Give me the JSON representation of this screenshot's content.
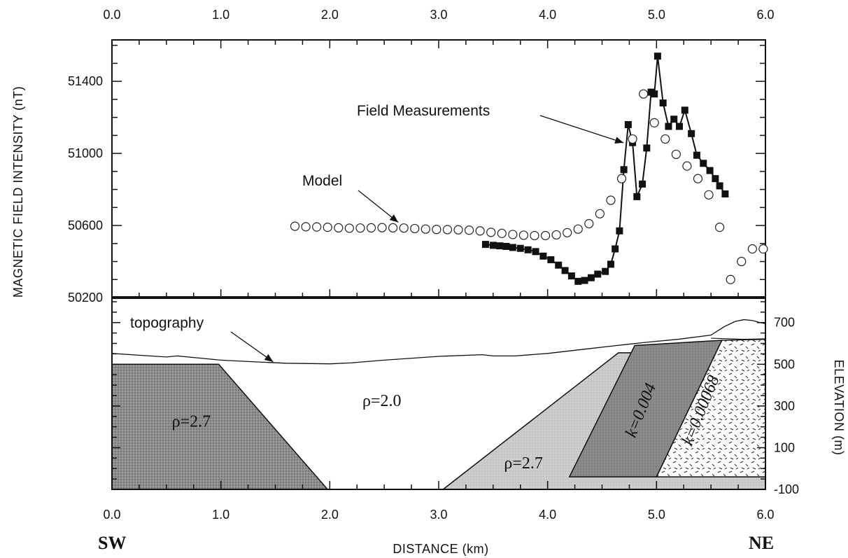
{
  "chart_data": [
    {
      "type": "scatter",
      "panel": "magnetic-profile",
      "ylabel": "MAGNETIC FIELD INTENSITY (nT)",
      "xlim": [
        0,
        6
      ],
      "ylim": [
        50200,
        51630
      ],
      "x_ticks": [
        "0.0",
        "1.0",
        "2.0",
        "3.0",
        "4.0",
        "5.0",
        "6.0"
      ],
      "y_ticks": [
        {
          "value": 50200,
          "label": "50200"
        },
        {
          "value": 50600,
          "label": "50600"
        },
        {
          "value": 51000,
          "label": "51000"
        },
        {
          "value": 51400,
          "label": "51400"
        }
      ],
      "series": [
        {
          "name": "Field Measurements",
          "style": "line-square-filled",
          "x": [
            3.43,
            3.5,
            3.56,
            3.62,
            3.68,
            3.75,
            3.82,
            3.89,
            3.96,
            4.03,
            4.1,
            4.16,
            4.22,
            4.28,
            4.34,
            4.4,
            4.46,
            4.53,
            4.58,
            4.62,
            4.66,
            4.7,
            4.74,
            4.78,
            4.82,
            4.87,
            4.91,
            4.95,
            4.98,
            5.01,
            5.06,
            5.11,
            5.16,
            5.21,
            5.26,
            5.32,
            5.37,
            5.43,
            5.49,
            5.54,
            5.58,
            5.63
          ],
          "y": [
            50495,
            50490,
            50487,
            50484,
            50478,
            50473,
            50465,
            50455,
            50430,
            50410,
            50380,
            50350,
            50320,
            50290,
            50295,
            50310,
            50330,
            50345,
            50385,
            50470,
            50570,
            50910,
            51160,
            51060,
            50760,
            50830,
            51030,
            51340,
            51330,
            51540,
            51280,
            51150,
            51190,
            51150,
            51240,
            51110,
            50990,
            50945,
            50905,
            50860,
            50820,
            50775
          ]
        },
        {
          "name": "Model",
          "style": "open-circle",
          "x": [
            1.68,
            1.78,
            1.88,
            1.98,
            2.08,
            2.18,
            2.28,
            2.38,
            2.48,
            2.58,
            2.68,
            2.78,
            2.88,
            2.98,
            3.08,
            3.18,
            3.28,
            3.38,
            3.48,
            3.58,
            3.68,
            3.78,
            3.88,
            3.98,
            4.08,
            4.18,
            4.28,
            4.38,
            4.48,
            4.58,
            4.68,
            4.78,
            4.88,
            4.98,
            5.08,
            5.18,
            5.28,
            5.38,
            5.48,
            5.58,
            5.68,
            5.78,
            5.88,
            5.98
          ],
          "y": [
            50596,
            50593,
            50592,
            50590,
            50587,
            50585,
            50586,
            50587,
            50588,
            50587,
            50586,
            50583,
            50580,
            50578,
            50577,
            50576,
            50574,
            50570,
            50562,
            50556,
            50550,
            50546,
            50544,
            50544,
            50548,
            50560,
            50580,
            50610,
            50665,
            50740,
            50860,
            51080,
            51330,
            51170,
            51080,
            50995,
            50930,
            50860,
            50770,
            50590,
            50300,
            50400,
            50470,
            50470
          ]
        }
      ],
      "annotations": [
        {
          "text": "Field Measurements",
          "x": 4.62,
          "y": 51160
        },
        {
          "text": "Model",
          "x": 2.68,
          "y": 50586
        }
      ]
    },
    {
      "type": "area",
      "panel": "geologic-cross-section",
      "xlabel": "DISTANCE (km)",
      "ylabel": "ELEVATION (m)",
      "xlim": [
        0,
        6
      ],
      "ylim": [
        -100,
        820
      ],
      "x_ticks": [
        "0.0",
        "1.0",
        "2.0",
        "3.0",
        "4.0",
        "5.0",
        "6.0"
      ],
      "y_ticks": [
        {
          "value": 700,
          "label": "700"
        },
        {
          "value": 500,
          "label": "500"
        },
        {
          "value": 300,
          "label": "300"
        },
        {
          "value": 100,
          "label": "100"
        },
        {
          "value": -100,
          "label": "-100"
        }
      ],
      "topography": {
        "label": "topography",
        "x": [
          0.0,
          0.2,
          0.35,
          0.5,
          0.6,
          0.8,
          1.0,
          1.3,
          1.6,
          2.0,
          2.2,
          2.5,
          3.0,
          3.4,
          3.5,
          3.7,
          4.0,
          4.3,
          4.6,
          4.9,
          5.2,
          5.5,
          5.62,
          5.72,
          5.8,
          5.88,
          5.95,
          6.0
        ],
        "y": [
          552,
          545,
          540,
          535,
          540,
          530,
          520,
          512,
          505,
          502,
          507,
          520,
          538,
          546,
          540,
          540,
          552,
          570,
          588,
          605,
          620,
          640,
          680,
          705,
          714,
          710,
          700,
          695
        ]
      },
      "topography_low": {
        "x": [
          5.5,
          5.8,
          6.0
        ],
        "y": [
          625,
          620,
          622
        ]
      },
      "bodies": [
        {
          "label": "ρ=2.7",
          "pattern": "dark-stipple",
          "polygon": [
            [
              0,
              -100
            ],
            [
              0,
              500
            ],
            [
              0.98,
              500
            ],
            [
              1.98,
              -100
            ]
          ],
          "label_pos": [
            0.55,
            200
          ]
        },
        {
          "label": "ρ=2.0",
          "pattern": "none",
          "label_pos": [
            2.3,
            300
          ]
        },
        {
          "label": "ρ=2.7",
          "pattern": "light-stipple",
          "polygon": [
            [
              3.04,
              -100
            ],
            [
              4.65,
              555
            ],
            [
              5.65,
              555
            ],
            [
              5.65,
              -40
            ],
            [
              6.0,
              -40
            ],
            [
              6.0,
              -100
            ]
          ],
          "label_pos": [
            3.6,
            0
          ]
        },
        {
          "label": "k=0.004",
          "pattern": "dark",
          "polygon": [
            [
              4.2,
              -40
            ],
            [
              4.8,
              590
            ],
            [
              5.6,
              615
            ],
            [
              5.0,
              -40
            ]
          ],
          "label_pos": [
            4.9,
            270
          ]
        },
        {
          "label": "k=0.00068",
          "pattern": "dashes",
          "polygon": [
            [
              5.0,
              -40
            ],
            [
              5.6,
              615
            ],
            [
              6.0,
              620
            ],
            [
              6.0,
              -40
            ]
          ],
          "label_pos": [
            5.45,
            270
          ]
        }
      ],
      "annotations": [
        {
          "text": "topography",
          "x": 1.48,
          "y": 505
        }
      ]
    }
  ],
  "labels": {
    "sw": "SW",
    "ne": "NE"
  },
  "colors": {
    "dark_body": "#8d8d8d",
    "light_body": "#cdcdcd",
    "k004_body": "#8b8b8b",
    "k00068_fill": "#ffffff",
    "ink": "#111111"
  }
}
